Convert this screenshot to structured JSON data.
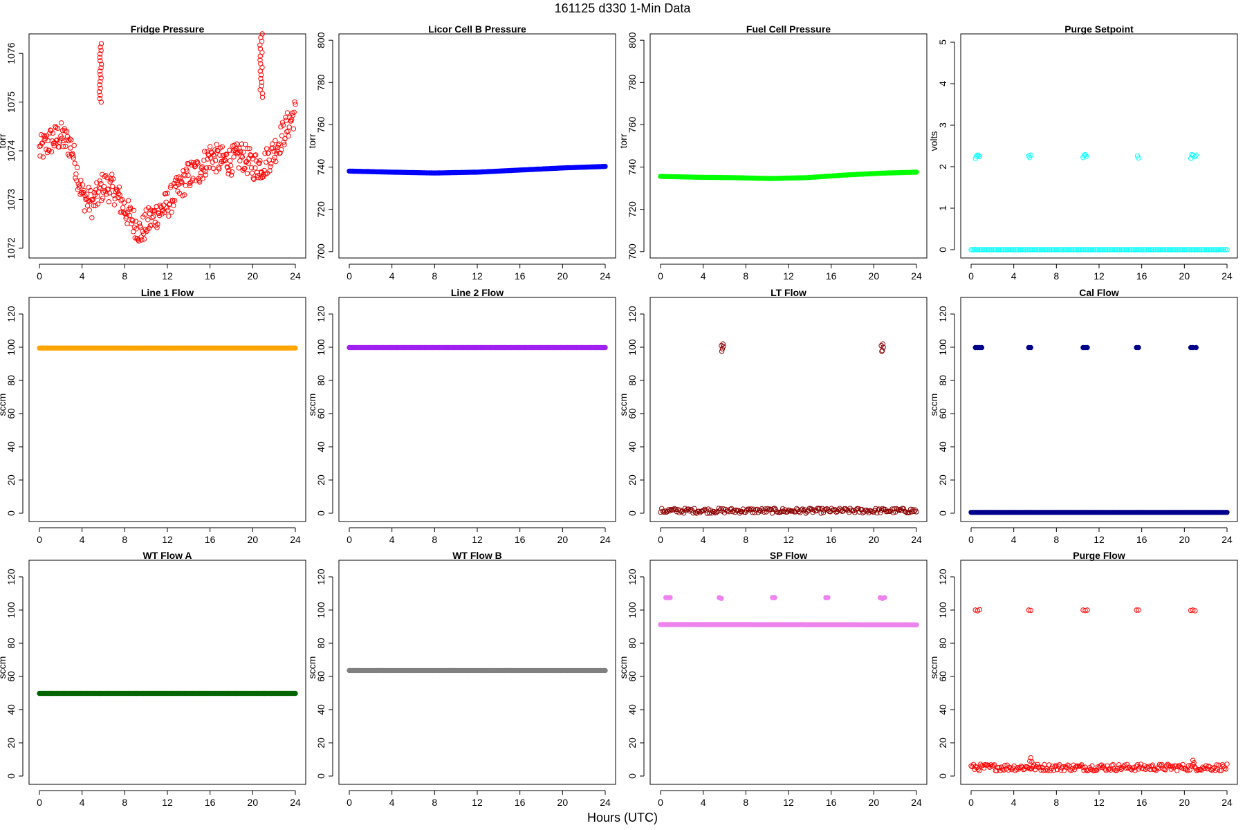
{
  "figure": {
    "title": "161125    d330    1-Min Data",
    "xlabel": "Hours (UTC)"
  },
  "chart_data": [
    {
      "type": "scatter",
      "title": "Fridge Pressure",
      "ylabel": "torr",
      "color": "#ff0000",
      "marker": "open-circle",
      "xlim": [
        0,
        24
      ],
      "ylim": [
        1071.8,
        1076.4
      ],
      "xticks": [
        0,
        4,
        8,
        12,
        16,
        20,
        24
      ],
      "yticks": [
        1072,
        1073,
        1074,
        1075,
        1076
      ],
      "series": [
        {
          "segments": [],
          "pointsets": [],
          "curve": {
            "x": [
              0,
              1,
              2,
              3,
              4,
              5,
              6,
              7,
              8,
              9,
              9.5,
              10,
              11,
              12,
              13,
              14,
              15,
              16,
              17,
              18,
              19,
              20,
              21,
              22,
              23,
              24
            ],
            "y": [
              1074,
              1074.2,
              1074.3,
              1074.1,
              1073.1,
              1072.9,
              1073.3,
              1073.2,
              1072.8,
              1072.5,
              1072.3,
              1072.5,
              1072.7,
              1072.9,
              1073.2,
              1073.5,
              1073.6,
              1073.9,
              1073.8,
              1073.8,
              1073.9,
              1073.7,
              1073.7,
              1074,
              1074.4,
              1074.8
            ]
          },
          "spread": 0.3,
          "clusters": [
            {
              "x": 5.7,
              "y0": 1075,
              "y1": 1076.2
            },
            {
              "x": 20.8,
              "y0": 1075.1,
              "y1": 1076.4
            }
          ]
        }
      ]
    },
    {
      "type": "scatter",
      "title": "Licor Cell B Pressure",
      "ylabel": "torr",
      "color": "#0000ff",
      "marker": "filled-circle",
      "xlim": [
        0,
        24
      ],
      "ylim": [
        697,
        803
      ],
      "xticks": [
        0,
        4,
        8,
        12,
        16,
        20,
        24
      ],
      "yticks": [
        700,
        720,
        740,
        760,
        780,
        800
      ],
      "series": [
        {
          "segments": [
            {
              "x0": 0,
              "x1": 24,
              "y": [
                738.1,
                737.6,
                737.2,
                737.6,
                738.6,
                739.6,
                740.3
              ]
            }
          ],
          "pointsets": []
        }
      ]
    },
    {
      "type": "scatter",
      "title": "Fuel Cell Pressure",
      "ylabel": "torr",
      "color": "#00ff00",
      "marker": "filled-circle",
      "xlim": [
        0,
        24
      ],
      "ylim": [
        697,
        803
      ],
      "xticks": [
        0,
        4,
        8,
        12,
        16,
        20,
        24
      ],
      "yticks": [
        700,
        720,
        740,
        760,
        780,
        800
      ],
      "series": [
        {
          "segments": [
            {
              "x0": 0,
              "x1": 24,
              "y": [
                735.6,
                735.2,
                735,
                734.6,
                735,
                736.2,
                737.1,
                737.6
              ]
            }
          ],
          "pointsets": []
        }
      ]
    },
    {
      "type": "scatter",
      "title": "Purge Setpoint",
      "ylabel": "volts",
      "color": "#00ffff",
      "marker": "open-circle",
      "xlim": [
        0,
        24
      ],
      "ylim": [
        -0.2,
        5.2
      ],
      "xticks": [
        0,
        4,
        8,
        12,
        16,
        20,
        24
      ],
      "yticks": [
        0,
        1,
        2,
        3,
        4,
        5
      ],
      "series": [
        {
          "segments": [
            {
              "x0": 0,
              "x1": 24,
              "y": [
                0,
                0
              ]
            }
          ],
          "pointsets": [
            {
              "x": [
                0.4,
                0.5,
                0.6,
                0.7,
                0.8
              ],
              "y": [
                2.2,
                2.25,
                2.28,
                2.27,
                2.24
              ]
            },
            {
              "x": [
                5.4,
                5.5,
                5.6
              ],
              "y": [
                2.26,
                2.22,
                2.28
              ]
            },
            {
              "x": [
                10.5,
                10.6,
                10.7,
                10.8
              ],
              "y": [
                2.22,
                2.27,
                2.29,
                2.25
              ]
            },
            {
              "x": [
                15.6,
                15.7
              ],
              "y": [
                2.26,
                2.21
              ]
            },
            {
              "x": [
                20.6,
                20.7,
                20.8,
                21.0,
                21.1
              ],
              "y": [
                2.2,
                2.29,
                2.27,
                2.24,
                2.28
              ]
            }
          ]
        }
      ]
    },
    {
      "type": "scatter",
      "title": "Line 1 Flow",
      "ylabel": "sccm",
      "color": "#ffa500",
      "marker": "filled-circle",
      "xlim": [
        0,
        24
      ],
      "ylim": [
        -5,
        130
      ],
      "xticks": [
        0,
        4,
        8,
        12,
        16,
        20,
        24
      ],
      "yticks": [
        0,
        20,
        40,
        60,
        80,
        100,
        120
      ],
      "series": [
        {
          "segments": [
            {
              "x0": 0,
              "x1": 24,
              "y": [
                99.5,
                99.5
              ]
            }
          ],
          "pointsets": []
        }
      ]
    },
    {
      "type": "scatter",
      "title": "Line 2 Flow",
      "ylabel": "sccm",
      "color": "#a020f0",
      "marker": "filled-circle",
      "xlim": [
        0,
        24
      ],
      "ylim": [
        -5,
        130
      ],
      "xticks": [
        0,
        4,
        8,
        12,
        16,
        20,
        24
      ],
      "yticks": [
        0,
        20,
        40,
        60,
        80,
        100,
        120
      ],
      "series": [
        {
          "segments": [
            {
              "x0": 0,
              "x1": 24,
              "y": [
                99.8,
                99.8
              ]
            }
          ],
          "pointsets": []
        }
      ]
    },
    {
      "type": "scatter",
      "title": "LT Flow",
      "ylabel": "sccm",
      "color": "#8b0000",
      "marker": "open-circle",
      "xlim": [
        0,
        24
      ],
      "ylim": [
        -5,
        130
      ],
      "xticks": [
        0,
        4,
        8,
        12,
        16,
        20,
        24
      ],
      "yticks": [
        0,
        20,
        40,
        60,
        80,
        100,
        120
      ],
      "series": [
        {
          "segments": [
            {
              "x0": 0,
              "x1": 24,
              "y": [
                1.5,
                1.5
              ]
            }
          ],
          "pointsets": [
            {
              "x": [
                5.7,
                5.8,
                5.9,
                5.75,
                5.85
              ],
              "y": [
                101,
                99,
                100.5,
                97.5,
                102
              ]
            },
            {
              "x": [
                20.7,
                20.8,
                20.9,
                20.75,
                20.85
              ],
              "y": [
                101,
                98,
                100,
                97.5,
                102
              ]
            }
          ],
          "spread": 1.5
        }
      ]
    },
    {
      "type": "scatter",
      "title": "Cal Flow",
      "ylabel": "sccm",
      "color": "#00008b",
      "marker": "filled-circle",
      "xlim": [
        0,
        24
      ],
      "ylim": [
        -5,
        130
      ],
      "xticks": [
        0,
        4,
        8,
        12,
        16,
        20,
        24
      ],
      "yticks": [
        0,
        20,
        40,
        60,
        80,
        100,
        120
      ],
      "series": [
        {
          "segments": [
            {
              "x0": 0,
              "x1": 24,
              "y": [
                0.5,
                0.5
              ]
            }
          ],
          "pointsets": [
            {
              "x": [
                0.4,
                0.6,
                0.8,
                1.0
              ],
              "y": [
                99.8,
                99.8,
                99.8,
                99.8
              ]
            },
            {
              "x": [
                5.4,
                5.6
              ],
              "y": [
                99.8,
                99.8
              ]
            },
            {
              "x": [
                10.5,
                10.7,
                10.9
              ],
              "y": [
                99.8,
                99.8,
                99.8
              ]
            },
            {
              "x": [
                15.5,
                15.7
              ],
              "y": [
                99.8,
                99.8
              ]
            },
            {
              "x": [
                20.6,
                20.8,
                21.1
              ],
              "y": [
                99.8,
                99.8,
                99.8
              ]
            }
          ]
        }
      ]
    },
    {
      "type": "scatter",
      "title": "WT Flow A",
      "ylabel": "sccm",
      "color": "#006400",
      "marker": "filled-circle",
      "xlim": [
        0,
        24
      ],
      "ylim": [
        -5,
        130
      ],
      "xticks": [
        0,
        4,
        8,
        12,
        16,
        20,
        24
      ],
      "yticks": [
        0,
        20,
        40,
        60,
        80,
        100,
        120
      ],
      "series": [
        {
          "segments": [
            {
              "x0": 0,
              "x1": 24,
              "y": [
                49.8,
                49.8
              ]
            }
          ],
          "pointsets": []
        }
      ]
    },
    {
      "type": "scatter",
      "title": "WT Flow B",
      "ylabel": "sccm",
      "color": "#808080",
      "marker": "filled-circle",
      "xlim": [
        0,
        24
      ],
      "ylim": [
        -5,
        130
      ],
      "xticks": [
        0,
        4,
        8,
        12,
        16,
        20,
        24
      ],
      "yticks": [
        0,
        20,
        40,
        60,
        80,
        100,
        120
      ],
      "series": [
        {
          "segments": [
            {
              "x0": 0,
              "x1": 24,
              "y": [
                63.6,
                63.6
              ]
            }
          ],
          "pointsets": []
        }
      ]
    },
    {
      "type": "scatter",
      "title": "SP Flow",
      "ylabel": "sccm",
      "color": "#ee82ee",
      "marker": "filled-circle",
      "xlim": [
        0,
        24
      ],
      "ylim": [
        -5,
        130
      ],
      "xticks": [
        0,
        4,
        8,
        12,
        16,
        20,
        24
      ],
      "yticks": [
        0,
        20,
        40,
        60,
        80,
        100,
        120
      ],
      "series": [
        {
          "segments": [
            {
              "x0": 0,
              "x1": 24,
              "y": [
                91.3,
                91.1
              ]
            }
          ],
          "pointsets": [
            {
              "x": [
                0.5,
                0.7,
                0.9
              ],
              "y": [
                107.5,
                107.5,
                107.5
              ]
            },
            {
              "x": [
                5.5,
                5.7
              ],
              "y": [
                107.5,
                107
              ]
            },
            {
              "x": [
                10.5,
                10.7
              ],
              "y": [
                107.5,
                107.5
              ]
            },
            {
              "x": [
                15.5,
                15.7
              ],
              "y": [
                107.5,
                107.5
              ]
            },
            {
              "x": [
                20.6,
                20.8,
                21.0
              ],
              "y": [
                107.5,
                107,
                107.5
              ]
            }
          ]
        }
      ]
    },
    {
      "type": "scatter",
      "title": "Purge Flow",
      "ylabel": "sccm",
      "color": "#ff0000",
      "marker": "open-circle",
      "xlim": [
        0,
        24
      ],
      "ylim": [
        -5,
        130
      ],
      "xticks": [
        0,
        4,
        8,
        12,
        16,
        20,
        24
      ],
      "yticks": [
        0,
        20,
        40,
        60,
        80,
        100,
        120
      ],
      "series": [
        {
          "segments": [
            {
              "x0": 0,
              "x1": 24,
              "y": [
                5.2,
                5.2
              ]
            }
          ],
          "pointsets": [
            {
              "x": [
                0.4,
                0.6,
                0.8
              ],
              "y": [
                100,
                99.6,
                100.2
              ]
            },
            {
              "x": [
                5.4,
                5.6
              ],
              "y": [
                100,
                99.8
              ]
            },
            {
              "x": [
                10.5,
                10.7,
                10.9
              ],
              "y": [
                100,
                99.7,
                100
              ]
            },
            {
              "x": [
                15.5,
                15.7
              ],
              "y": [
                100,
                100
              ]
            },
            {
              "x": [
                20.6,
                20.8,
                21.0
              ],
              "y": [
                99.8,
                100,
                99.6
              ]
            },
            {
              "x": [
                5.5,
                5.6,
                5.7
              ],
              "y": [
                9,
                11,
                8.5
              ]
            },
            {
              "x": [
                20.8,
                20.9
              ],
              "y": [
                9.5,
                8
              ]
            }
          ],
          "spread": 2
        }
      ]
    }
  ]
}
